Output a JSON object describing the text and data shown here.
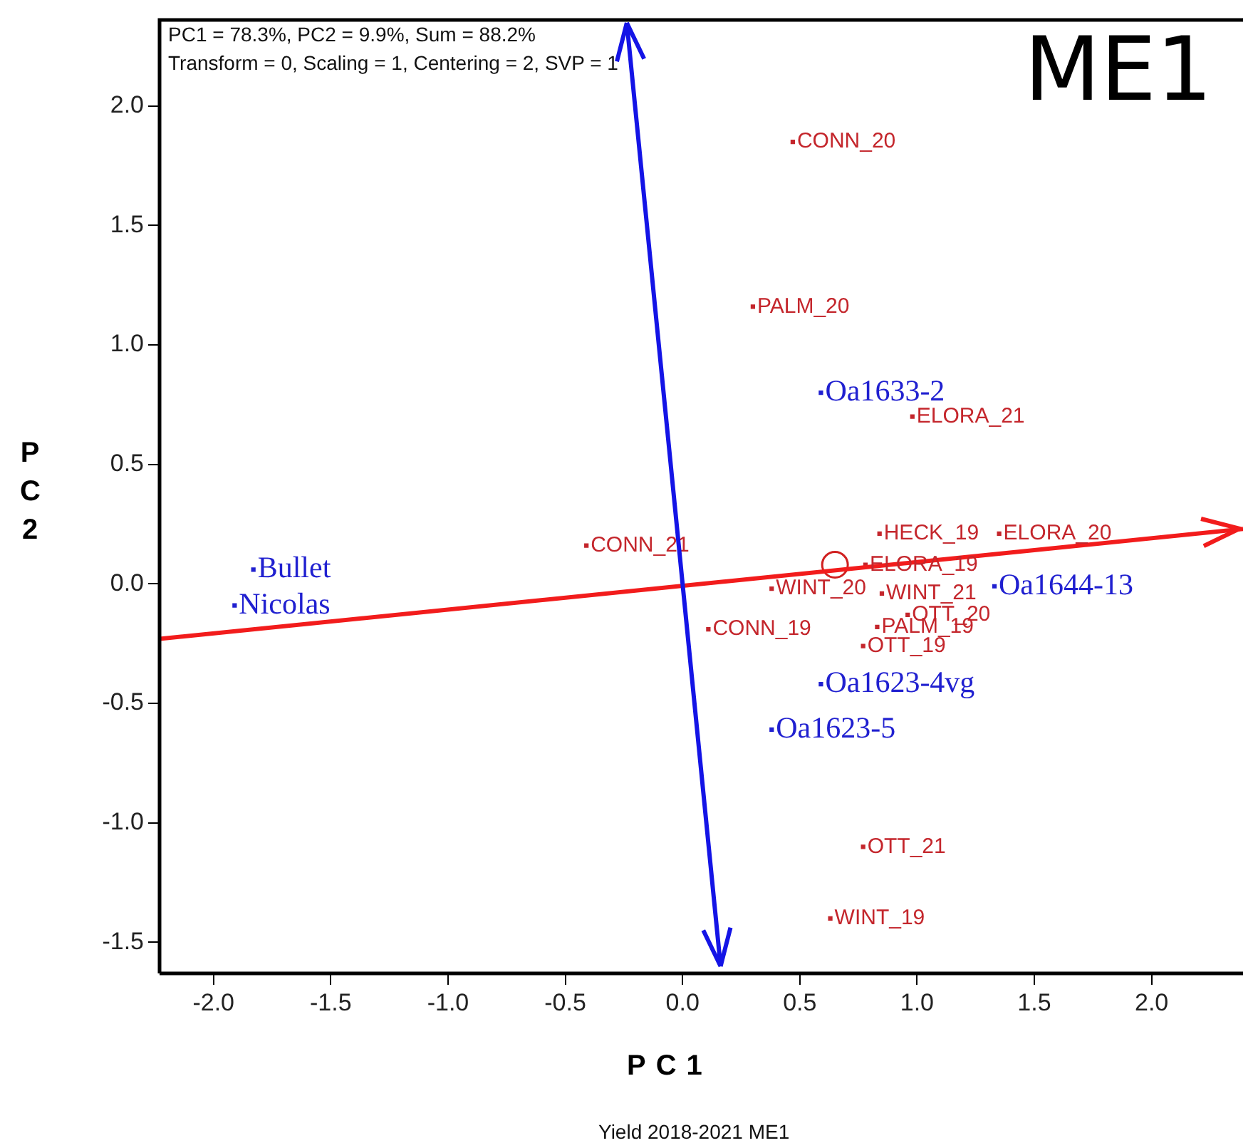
{
  "chart_data": {
    "type": "scatter",
    "title": "ME1",
    "xlabel": "PC1",
    "ylabel": "PC2",
    "annotations": [
      "PC1 = 78.3%, PC2 = 9.9%, Sum = 88.2%",
      "Transform = 0, Scaling = 1, Centering = 2, SVP = 1",
      "Yield 2018-2021 ME1",
      {
        "text": "CONN_20",
        "x": 0.47,
        "y": 1.85
      },
      {
        "text": "PALM_20",
        "x": 0.3,
        "y": 1.16
      },
      {
        "text": "ELORA_21",
        "x": 0.98,
        "y": 0.7
      },
      {
        "text": "HECK_19",
        "x": 0.84,
        "y": 0.21
      },
      {
        "text": "ELORA_20",
        "x": 1.35,
        "y": 0.21
      },
      {
        "text": "CONN_21",
        "x": -0.41,
        "y": 0.16
      },
      {
        "text": "ELORA_19",
        "x": 0.78,
        "y": 0.08
      },
      {
        "text": "WINT_20",
        "x": 0.38,
        "y": -0.02
      },
      {
        "text": "WINT_21",
        "x": 0.85,
        "y": -0.04
      },
      {
        "text": "OTT_20",
        "x": 0.96,
        "y": -0.13
      },
      {
        "text": "CONN_19",
        "x": 0.11,
        "y": -0.19
      },
      {
        "text": "PALM_19",
        "x": 0.83,
        "y": -0.18
      },
      {
        "text": "OTT_19",
        "x": 0.77,
        "y": -0.26
      },
      {
        "text": "OTT_21",
        "x": 0.77,
        "y": -1.1
      },
      {
        "text": "WINT_19",
        "x": 0.63,
        "y": -1.4
      },
      {
        "text": "Oa1633-2",
        "x": 0.59,
        "y": 0.8
      },
      {
        "text": "Oa1644-13",
        "x": 1.33,
        "y": -0.01
      },
      {
        "text": "Oa1623-4vg",
        "x": 0.59,
        "y": -0.42
      },
      {
        "text": "Oa1623-5",
        "x": 0.38,
        "y": -0.61
      },
      {
        "text": "Bullet",
        "x": -1.83,
        "y": 0.06
      },
      {
        "text": "Nicolas",
        "x": -1.91,
        "y": -0.09
      }
    ],
    "xlim": [
      -2.23,
      2.39
    ],
    "ylim": [
      -1.63,
      2.36
    ],
    "xticks": [
      {
        "value": -2,
        "label": "-2.0"
      },
      {
        "value": -1.5,
        "label": "-1.5"
      },
      {
        "value": -1,
        "label": "-1.0"
      },
      {
        "value": -0.5,
        "label": "-0.5"
      },
      {
        "value": 0,
        "label": "0.0"
      },
      {
        "value": 0.5,
        "label": "0.5"
      },
      {
        "value": 1,
        "label": "1.0"
      },
      {
        "value": 1.5,
        "label": "1.5"
      },
      {
        "value": 2,
        "label": "2.0"
      }
    ],
    "yticks": [
      {
        "value": -1.5,
        "label": "-1.5"
      },
      {
        "value": -1,
        "label": "-1.0"
      },
      {
        "value": -0.5,
        "label": "-0.5"
      },
      {
        "value": 0,
        "label": "0.0"
      },
      {
        "value": 0.5,
        "label": "0.5"
      },
      {
        "value": 1,
        "label": "1.0"
      },
      {
        "value": 1.5,
        "label": "1.5"
      },
      {
        "value": 2,
        "label": "2.0"
      }
    ],
    "grid": false,
    "legend": false,
    "series": [
      {
        "type": "line",
        "color": "#f21c1c",
        "x": [
          -2.23,
          2.39
        ],
        "values": [
          -0.23,
          0.23
        ]
      },
      {
        "marker": "circle",
        "color": "#d02020",
        "x": [
          0.65
        ],
        "values": [
          0.08
        ]
      },
      {
        "marker": "square",
        "color": "#c4262c",
        "x": [
          0.47,
          0.3,
          0.98,
          0.84,
          1.35,
          -0.41,
          0.78,
          0.38,
          0.85,
          0.96,
          0.11,
          0.83,
          0.77,
          0.77,
          0.63
        ],
        "values": [
          1.85,
          1.16,
          0.7,
          0.21,
          0.21,
          0.16,
          0.08,
          -0.02,
          -0.04,
          -0.13,
          -0.19,
          -0.18,
          -0.26,
          -1.1,
          -1.4
        ]
      },
      {
        "marker": "square",
        "color": "#2020d0",
        "x": [
          0.59,
          1.33,
          0.59,
          0.38,
          -1.83,
          -1.91
        ],
        "values": [
          0.8,
          -0.01,
          -0.42,
          -0.61,
          0.06,
          -0.09
        ]
      }
    ]
  }
}
